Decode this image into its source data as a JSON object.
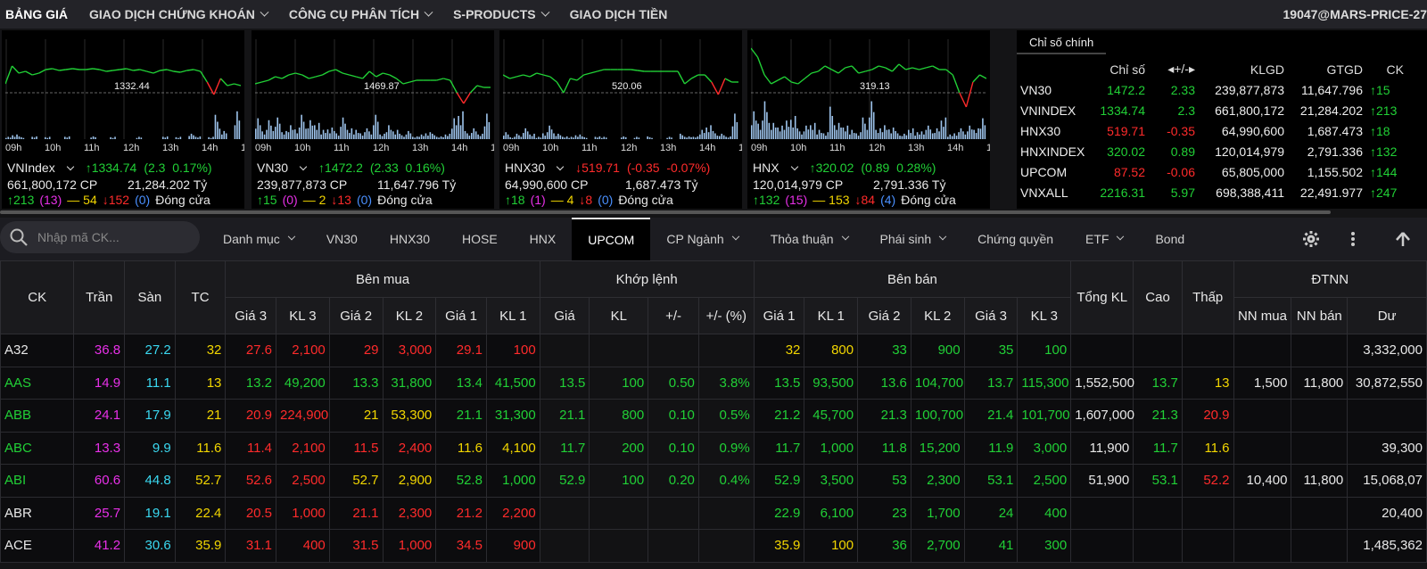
{
  "nav": {
    "items": [
      {
        "label": "BẢNG GIÁ",
        "dropdown": false,
        "active": true
      },
      {
        "label": "GIAO DỊCH CHỨNG KHOÁN",
        "dropdown": true
      },
      {
        "label": "CÔNG CỤ PHÂN TÍCH",
        "dropdown": true
      },
      {
        "label": "S-PRODUCTS",
        "dropdown": true
      },
      {
        "label": "GIAO DỊCH TIỀN",
        "dropdown": false
      }
    ],
    "user": "19047@MARS-PRICE-27"
  },
  "charts": [
    {
      "name": "VNIndex",
      "value_label": "1332.44",
      "arrow": "↑",
      "price": "1334.74",
      "change": "(2.3  0.17%)",
      "color": "#21d036",
      "volume": "661,800,172 CP",
      "value": "21,284.202 Tỷ",
      "up": "↑213",
      "up_ceil": "(13)",
      "flat": "— 54",
      "down": "↓152",
      "down_floor": "(0)",
      "status": "Đóng cửa"
    },
    {
      "name": "VN30",
      "value_label": "1469.87",
      "arrow": "↑",
      "price": "1472.2",
      "change": "(2.33  0.16%)",
      "color": "#21d036",
      "volume": "239,877,873 CP",
      "value": "11,647.796 Tỷ",
      "up": "↑15",
      "up_ceil": "(0)",
      "flat": "— 2",
      "down": "↓13",
      "down_floor": "(0)",
      "status": "Đóng cửa"
    },
    {
      "name": "HNX30",
      "value_label": "520.06",
      "arrow": "↓",
      "price": "519.71",
      "change": "(-0.35  -0.07%)",
      "color": "#ff2b2b",
      "volume": "64,990,600 CP",
      "value": "1,687.473 Tỷ",
      "up": "↑18",
      "up_ceil": "(1)",
      "flat": "— 4",
      "down": "↓8",
      "down_floor": "(0)",
      "status": "Đóng cửa"
    },
    {
      "name": "HNX",
      "value_label": "319.13",
      "arrow": "↑",
      "price": "320.02",
      "change": "(0.89  0.28%)",
      "color": "#21d036",
      "volume": "120,014,979 CP",
      "value": "2,791.336 Tỷ",
      "up": "↑132",
      "up_ceil": "(15)",
      "flat": "— 153",
      "down": "↓84",
      "down_floor": "(4)",
      "status": "Đóng cửa"
    }
  ],
  "chart_times": [
    "09h",
    "10h",
    "11h",
    "12h",
    "13h",
    "14h",
    "15h"
  ],
  "index_panel": {
    "tab": "Chỉ số chính",
    "headers": [
      "",
      "Chỉ số",
      "◂+/-▸",
      "KLGD",
      "GTGD",
      "CK"
    ],
    "rows": [
      {
        "name": "VN30",
        "value": "1472.2",
        "change": "2.33",
        "klgd": "239,877,873",
        "gtgd": "11,647.796",
        "ck": "↑15",
        "color": "#21d036"
      },
      {
        "name": "VNINDEX",
        "value": "1334.74",
        "change": "2.3",
        "klgd": "661,800,172",
        "gtgd": "21,284.202",
        "ck": "↑213",
        "color": "#21d036"
      },
      {
        "name": "HNX30",
        "value": "519.71",
        "change": "-0.35",
        "klgd": "64,990,600",
        "gtgd": "1,687.473",
        "ck": "↑18",
        "color": "#ff2b2b"
      },
      {
        "name": "HNXINDEX",
        "value": "320.02",
        "change": "0.89",
        "klgd": "120,014,979",
        "gtgd": "2,791.336",
        "ck": "↑132",
        "color": "#21d036"
      },
      {
        "name": "UPCOM",
        "value": "87.52",
        "change": "-0.06",
        "klgd": "65,805,000",
        "gtgd": "1,155.502",
        "ck": "↑144",
        "color": "#ff2b2b"
      },
      {
        "name": "VNXALL",
        "value": "2216.31",
        "change": "5.97",
        "klgd": "698,388,411",
        "gtgd": "22,491.977",
        "ck": "↑247",
        "color": "#21d036"
      }
    ]
  },
  "search": {
    "placeholder": "Nhập mã CK..."
  },
  "tabs": [
    {
      "label": "Danh mục",
      "dropdown": true
    },
    {
      "label": "VN30",
      "dropdown": false
    },
    {
      "label": "HNX30",
      "dropdown": false
    },
    {
      "label": "HOSE",
      "dropdown": false
    },
    {
      "label": "HNX",
      "dropdown": false
    },
    {
      "label": "UPCOM",
      "dropdown": false,
      "active": true
    },
    {
      "label": "CP Ngành",
      "dropdown": true
    },
    {
      "label": "Thỏa thuận",
      "dropdown": true
    },
    {
      "label": "Phái sinh",
      "dropdown": true
    },
    {
      "label": "Chứng quyền",
      "dropdown": false
    },
    {
      "label": "ETF",
      "dropdown": true
    },
    {
      "label": "Bond",
      "dropdown": false
    }
  ],
  "table": {
    "group_headers": {
      "ck": "CK",
      "tran": "Trần",
      "san": "Sàn",
      "tc": "TC",
      "ben_mua": "Bên mua",
      "khop_lenh": "Khớp lệnh",
      "ben_ban": "Bên bán",
      "tong_kl": "Tổng KL",
      "cao": "Cao",
      "thap": "Thấp",
      "dtnn": "ĐTNN"
    },
    "sub_headers": [
      "Giá 3",
      "KL 3",
      "Giá 2",
      "KL 2",
      "Giá 1",
      "KL 1",
      "Giá",
      "KL",
      "+/-",
      "+/- (%)",
      "Giá 1",
      "KL 1",
      "Giá 2",
      "KL 2",
      "Giá 3",
      "KL 3",
      "NN mua",
      "NN bán",
      "Dư"
    ],
    "rows": [
      {
        "c": [
          "A32",
          "36.8",
          "27.2",
          "32",
          "27.6",
          "2,100",
          "29",
          "3,000",
          "29.1",
          "100",
          "",
          "",
          "",
          "",
          "32",
          "800",
          "33",
          "900",
          "35",
          "100",
          "",
          "",
          "",
          "",
          "",
          "3,332,000"
        ],
        "k": [
          "w",
          "p",
          "c",
          "y",
          "r",
          "r",
          "r",
          "r",
          "r",
          "r",
          "",
          "",
          "",
          "",
          "y",
          "y",
          "g",
          "g",
          "g",
          "g",
          "",
          "",
          "",
          "",
          "",
          "w"
        ]
      },
      {
        "c": [
          "AAS",
          "14.9",
          "11.1",
          "13",
          "13.2",
          "49,200",
          "13.3",
          "31,800",
          "13.4",
          "41,500",
          "13.5",
          "100",
          "0.50",
          "3.8%",
          "13.5",
          "93,500",
          "13.6",
          "104,700",
          "13.7",
          "115,300",
          "1,552,500",
          "13.7",
          "13",
          "1,500",
          "11,800",
          "30,872,550"
        ],
        "k": [
          "g",
          "p",
          "c",
          "y",
          "g",
          "g",
          "g",
          "g",
          "g",
          "g",
          "g",
          "g",
          "g",
          "g",
          "g",
          "g",
          "g",
          "g",
          "g",
          "g",
          "w",
          "g",
          "y",
          "w",
          "w",
          "w"
        ]
      },
      {
        "c": [
          "ABB",
          "24.1",
          "17.9",
          "21",
          "20.9",
          "224,900",
          "21",
          "53,300",
          "21.1",
          "31,300",
          "21.1",
          "800",
          "0.10",
          "0.5%",
          "21.2",
          "45,700",
          "21.3",
          "100,700",
          "21.4",
          "101,700",
          "1,607,000",
          "21.3",
          "20.9",
          "",
          "",
          ""
        ],
        "k": [
          "g",
          "p",
          "c",
          "y",
          "r",
          "r",
          "y",
          "y",
          "g",
          "g",
          "g",
          "g",
          "g",
          "g",
          "g",
          "g",
          "g",
          "g",
          "g",
          "g",
          "w",
          "g",
          "r",
          "w",
          "w",
          "w"
        ]
      },
      {
        "c": [
          "ABC",
          "13.3",
          "9.9",
          "11.6",
          "11.4",
          "2,100",
          "11.5",
          "2,400",
          "11.6",
          "4,100",
          "11.7",
          "200",
          "0.10",
          "0.9%",
          "11.7",
          "1,000",
          "11.8",
          "15,200",
          "11.9",
          "3,000",
          "11,900",
          "11.7",
          "11.6",
          "",
          "",
          "39,300"
        ],
        "k": [
          "g",
          "p",
          "c",
          "y",
          "r",
          "r",
          "r",
          "r",
          "y",
          "y",
          "g",
          "g",
          "g",
          "g",
          "g",
          "g",
          "g",
          "g",
          "g",
          "g",
          "w",
          "g",
          "y",
          "w",
          "w",
          "w"
        ]
      },
      {
        "c": [
          "ABI",
          "60.6",
          "44.8",
          "52.7",
          "52.6",
          "2,500",
          "52.7",
          "2,900",
          "52.8",
          "1,000",
          "52.9",
          "100",
          "0.20",
          "0.4%",
          "52.9",
          "3,500",
          "53",
          "2,300",
          "53.1",
          "2,500",
          "51,900",
          "53.1",
          "52.2",
          "10,400",
          "11,800",
          "15,068,07"
        ],
        "k": [
          "g",
          "p",
          "c",
          "y",
          "r",
          "r",
          "y",
          "y",
          "g",
          "g",
          "g",
          "g",
          "g",
          "g",
          "g",
          "g",
          "g",
          "g",
          "g",
          "g",
          "w",
          "g",
          "r",
          "w",
          "w",
          "w"
        ]
      },
      {
        "c": [
          "ABR",
          "25.7",
          "19.1",
          "22.4",
          "20.5",
          "1,000",
          "21.1",
          "2,300",
          "21.2",
          "2,200",
          "",
          "",
          "",
          "",
          "22.9",
          "6,100",
          "23",
          "1,700",
          "24",
          "400",
          "",
          "",
          "",
          "",
          "",
          "20,400"
        ],
        "k": [
          "w",
          "p",
          "c",
          "y",
          "r",
          "r",
          "r",
          "r",
          "r",
          "r",
          "",
          "",
          "",
          "",
          "g",
          "g",
          "g",
          "g",
          "g",
          "g",
          "",
          "",
          "",
          "",
          "",
          "w"
        ]
      },
      {
        "c": [
          "ACE",
          "41.2",
          "30.6",
          "35.9",
          "31.1",
          "400",
          "31.5",
          "1,000",
          "34.5",
          "900",
          "",
          "",
          "",
          "",
          "35.9",
          "100",
          "36",
          "2,700",
          "41",
          "300",
          "",
          "",
          "",
          "",
          "",
          "1,485,362"
        ],
        "k": [
          "w",
          "p",
          "c",
          "y",
          "r",
          "r",
          "r",
          "r",
          "r",
          "r",
          "",
          "",
          "",
          "",
          "y",
          "y",
          "g",
          "g",
          "g",
          "g",
          "",
          "",
          "",
          "",
          "",
          "w"
        ]
      }
    ]
  },
  "colors": {
    "up": "#21d036",
    "down": "#ff2b2b",
    "ref": "#f2d600",
    "ceil": "#e830e8",
    "floor": "#3ad8f0",
    "chart_fill": "#9ec4ec"
  }
}
